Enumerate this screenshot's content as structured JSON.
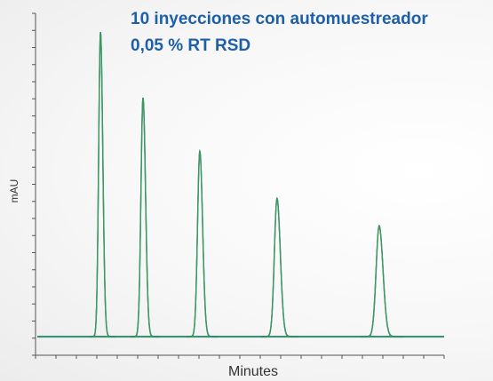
{
  "chart_data": {
    "type": "chromatogram",
    "title": "10 inyecciones con automuestreador",
    "subtitle": "0,05 % RT RSD",
    "x_label": "Minutes",
    "y_label": "mAU",
    "xlim": [
      0,
      100
    ],
    "ylim": [
      0,
      100
    ],
    "xticks": [
      0,
      5,
      10,
      15,
      20,
      25,
      30,
      35,
      40,
      45,
      50,
      55,
      60,
      65,
      70,
      75,
      80,
      85,
      90,
      95,
      100
    ],
    "yticks": [
      0,
      5,
      10,
      15,
      20,
      25,
      30,
      35,
      40,
      45,
      50,
      55,
      60,
      65,
      70,
      75,
      80,
      85,
      90,
      95,
      100
    ],
    "baseline": 5.5,
    "peaks": {
      "x": [
        15.9,
        26.3,
        40.2,
        59.1,
        84.1
      ],
      "heights": [
        94.5,
        75.3,
        59.7,
        45.9,
        37.9
      ],
      "widths": [
        0.45,
        0.5,
        0.55,
        0.65,
        0.75
      ]
    },
    "colors": [
      "#2b5fa8",
      "#3a9a5a"
    ]
  }
}
